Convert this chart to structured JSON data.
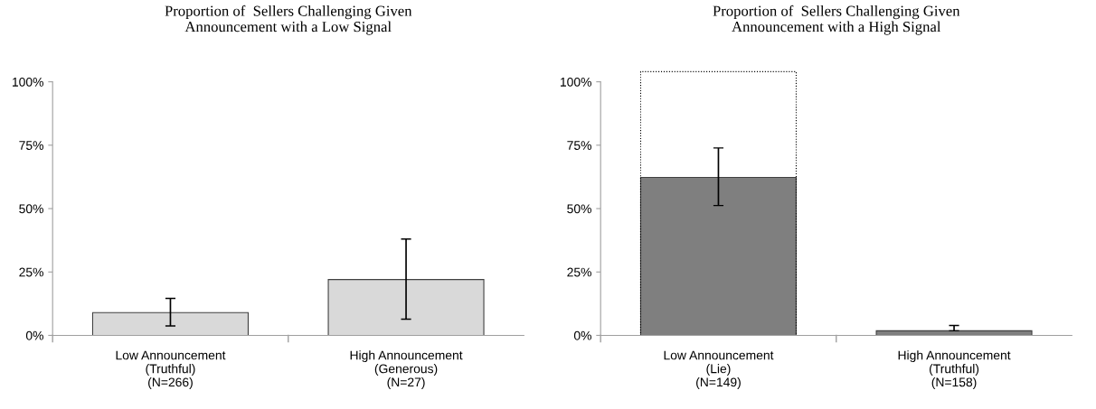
{
  "chart_data": [
    {
      "type": "bar",
      "title": "Proportion of  Sellers Challenging Given\nAnnouncement with a Low Signal",
      "categories": [
        "Low Announcement\n(Truthful)\n(N=266)",
        "High Announcement\n(Generous)\n(N=27)"
      ],
      "values": [
        9,
        22
      ],
      "errors": [
        [
          3.7,
          14.6
        ],
        [
          6.4,
          38
        ]
      ],
      "color": "#d9d9d9",
      "ylim": [
        0,
        100
      ],
      "yticks": [
        {
          "value": 0,
          "label": "0%"
        },
        {
          "value": 25,
          "label": "25%"
        },
        {
          "value": 50,
          "label": "50%"
        },
        {
          "value": 75,
          "label": "75%"
        },
        {
          "value": 100,
          "label": "100%"
        }
      ],
      "grid": false,
      "legend": false
    },
    {
      "type": "bar",
      "title": "Proportion of  Sellers Challenging Given\nAnnouncement with a High Signal",
      "categories": [
        "Low Announcement\n(Lie)\n(N=149)",
        "High Announcement\n(Truthful)\n(N=158)"
      ],
      "values": [
        62.3,
        1.8
      ],
      "errors": [
        [
          51.2,
          73.9
        ],
        [
          1.8,
          3.9
        ]
      ],
      "color": "#7f7f7f",
      "ylim": [
        0,
        100
      ],
      "yticks": [
        {
          "value": 0,
          "label": "0%"
        },
        {
          "value": 25,
          "label": "25%"
        },
        {
          "value": 50,
          "label": "50%"
        },
        {
          "value": 75,
          "label": "75%"
        },
        {
          "value": 100,
          "label": "100%"
        }
      ],
      "grid": false,
      "legend": false
    }
  ]
}
